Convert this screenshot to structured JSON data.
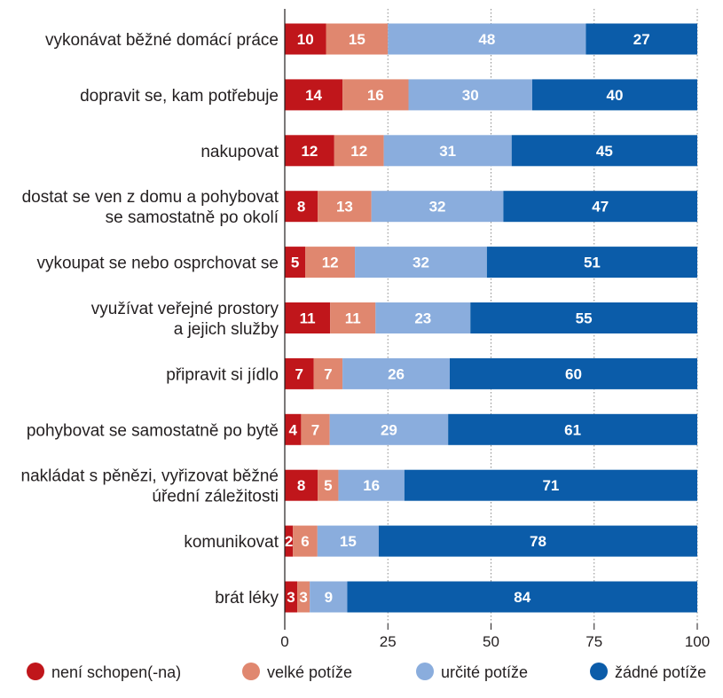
{
  "chart_data": {
    "type": "bar",
    "orientation": "horizontal",
    "stacked": true,
    "categories": [
      [
        "vykonávat běžné domácí práce"
      ],
      [
        "dopravit se, kam potřebuje"
      ],
      [
        "nakupovat"
      ],
      [
        "dostat se ven z domu a pohybovat",
        "se samostatně po okolí"
      ],
      [
        "vykoupat se nebo osprchovat se"
      ],
      [
        "využívat veřejné prostory",
        "a jejich služby"
      ],
      [
        "připravit si jídlo"
      ],
      [
        "pohybovat se samostatně po bytě"
      ],
      [
        "nakládat s pěnězi, vyřizovat běžné",
        "úřední záležitosti"
      ],
      [
        "komunikovat"
      ],
      [
        "brát léky"
      ]
    ],
    "series": [
      {
        "name": "není schopen(-na)",
        "color": "#c0161b",
        "values": [
          10,
          14,
          12,
          8,
          5,
          11,
          7,
          4,
          8,
          2,
          3
        ]
      },
      {
        "name": "velké potíže",
        "color": "#e0876f",
        "values": [
          15,
          16,
          12,
          13,
          12,
          11,
          7,
          7,
          5,
          6,
          3
        ]
      },
      {
        "name": "určité potíže",
        "color": "#8aaddd",
        "values": [
          48,
          30,
          31,
          32,
          32,
          23,
          26,
          29,
          16,
          15,
          9
        ]
      },
      {
        "name": "žádné potíže",
        "color": "#0b5ca9",
        "values": [
          27,
          40,
          45,
          47,
          51,
          55,
          60,
          61,
          71,
          78,
          84
        ]
      }
    ],
    "xlim": [
      0,
      100
    ],
    "xticks": [
      0,
      25,
      50,
      75,
      100
    ],
    "grid": true,
    "grid_style": "dotted",
    "legend": "bottom"
  }
}
